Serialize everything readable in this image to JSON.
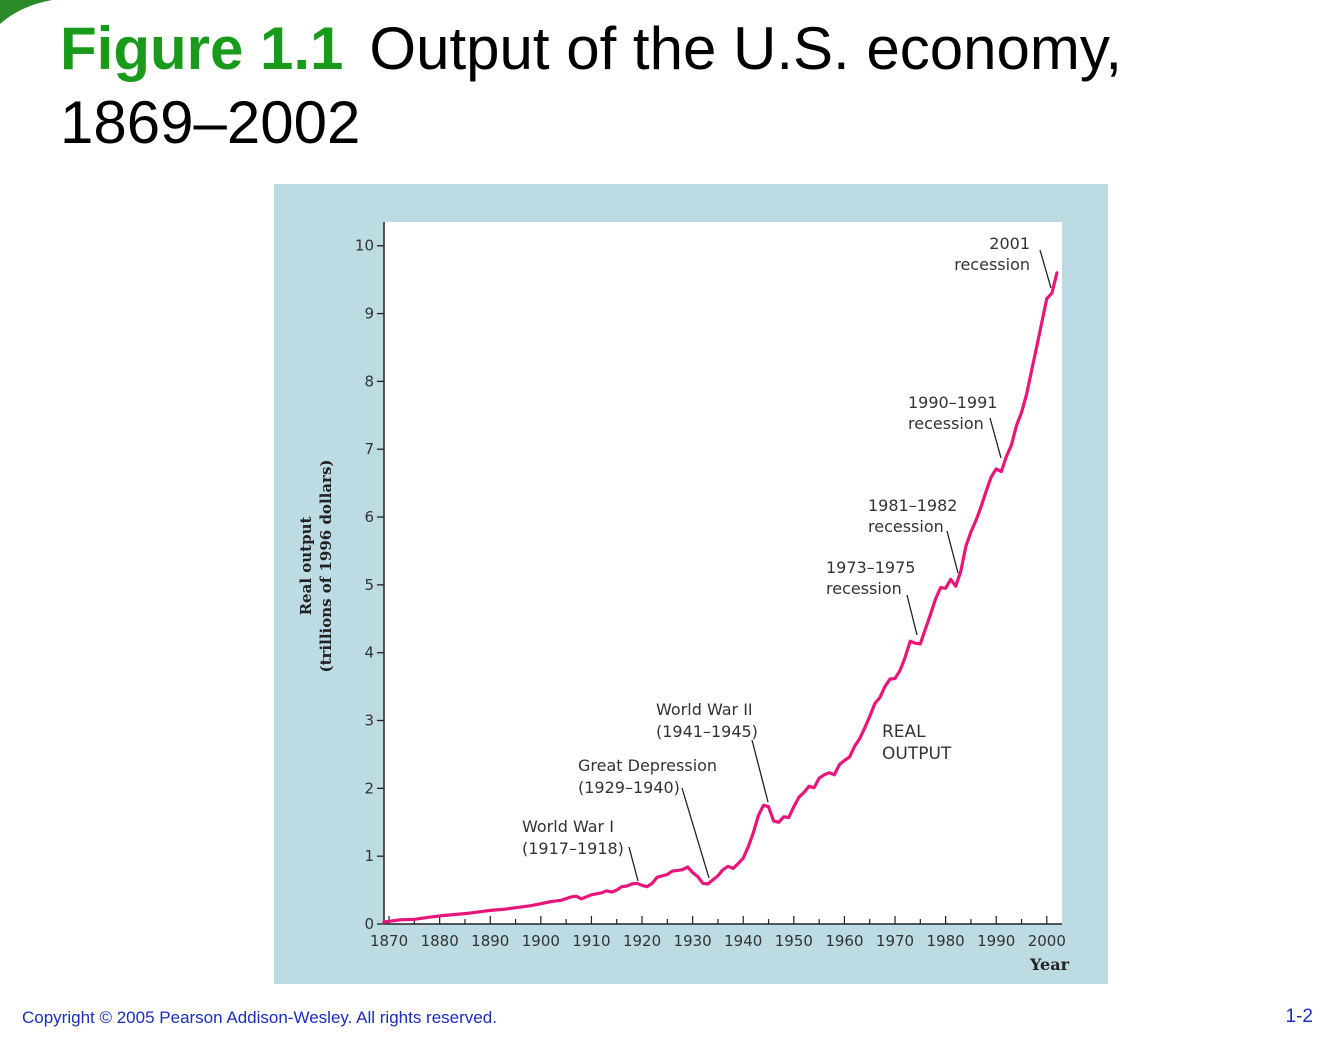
{
  "slide": {
    "title_prefix": "Figure 1.1",
    "title_text": "Output of the U.S. economy, 1869–2002",
    "copyright": "Copyright © 2005 Pearson Addison-Wesley. All rights reserved.",
    "slide_number": "1-2"
  },
  "colors": {
    "title_accent": "#1a9a1a",
    "panel_bg": "#bddbe2",
    "series": "#e8157a",
    "footer": "#1a2eb8"
  },
  "chart_data": {
    "type": "line",
    "ylabel_line1": "Real output",
    "ylabel_line2": "(trillions of 1996 dollars)",
    "xlabel": "Year",
    "xlim": [
      1869,
      2003
    ],
    "ylim": [
      0,
      10.35
    ],
    "x_ticks": [
      1870,
      1880,
      1890,
      1900,
      1910,
      1920,
      1930,
      1940,
      1950,
      1960,
      1970,
      1980,
      1990,
      2000
    ],
    "y_ticks": [
      0,
      1,
      2,
      3,
      4,
      5,
      6,
      7,
      8,
      9,
      10
    ],
    "series_label_line1": "REAL",
    "series_label_line2": "OUTPUT",
    "series": [
      {
        "name": "Real output",
        "x": [
          1869,
          1870,
          1872,
          1875,
          1878,
          1880,
          1883,
          1886,
          1889,
          1890,
          1893,
          1895,
          1898,
          1900,
          1902,
          1904,
          1906,
          1907,
          1908,
          1910,
          1912,
          1913,
          1914,
          1915,
          1916,
          1917,
          1918,
          1919,
          1920,
          1921,
          1922,
          1923,
          1925,
          1926,
          1927,
          1928,
          1929,
          1930,
          1931,
          1932,
          1933,
          1934,
          1935,
          1936,
          1937,
          1938,
          1939,
          1940,
          1941,
          1942,
          1943,
          1944,
          1945,
          1946,
          1947,
          1948,
          1949,
          1950,
          1951,
          1952,
          1953,
          1954,
          1955,
          1956,
          1957,
          1958,
          1959,
          1960,
          1961,
          1962,
          1963,
          1964,
          1965,
          1966,
          1967,
          1968,
          1969,
          1970,
          1971,
          1972,
          1973,
          1974,
          1975,
          1976,
          1977,
          1978,
          1979,
          1980,
          1981,
          1982,
          1983,
          1984,
          1985,
          1986,
          1987,
          1988,
          1989,
          1990,
          1991,
          1992,
          1993,
          1994,
          1995,
          1996,
          1997,
          1998,
          1999,
          2000,
          2001,
          2002
        ],
        "y": [
          0.03,
          0.04,
          0.06,
          0.07,
          0.1,
          0.12,
          0.14,
          0.16,
          0.19,
          0.2,
          0.22,
          0.24,
          0.27,
          0.3,
          0.33,
          0.35,
          0.4,
          0.41,
          0.37,
          0.43,
          0.46,
          0.49,
          0.47,
          0.5,
          0.55,
          0.56,
          0.59,
          0.6,
          0.57,
          0.55,
          0.6,
          0.69,
          0.73,
          0.78,
          0.79,
          0.8,
          0.84,
          0.76,
          0.7,
          0.6,
          0.59,
          0.65,
          0.71,
          0.8,
          0.85,
          0.82,
          0.89,
          0.97,
          1.14,
          1.35,
          1.6,
          1.75,
          1.73,
          1.52,
          1.5,
          1.58,
          1.57,
          1.73,
          1.87,
          1.94,
          2.03,
          2.01,
          2.15,
          2.2,
          2.23,
          2.2,
          2.35,
          2.41,
          2.46,
          2.62,
          2.73,
          2.89,
          3.06,
          3.25,
          3.34,
          3.5,
          3.61,
          3.62,
          3.74,
          3.93,
          4.17,
          4.14,
          4.13,
          4.35,
          4.56,
          4.79,
          4.96,
          4.95,
          5.08,
          4.98,
          5.2,
          5.57,
          5.78,
          5.95,
          6.15,
          6.38,
          6.59,
          6.71,
          6.67,
          6.89,
          7.06,
          7.35,
          7.54,
          7.81,
          8.16,
          8.51,
          8.87,
          9.22,
          9.3,
          9.6
        ]
      }
    ],
    "annotations": [
      {
        "line1": "World  War  I",
        "line2": "(1917–1918)"
      },
      {
        "line1": "Great  Depression",
        "line2": "(1929–1940)"
      },
      {
        "line1": "World  War  II",
        "line2": "(1941–1945)"
      },
      {
        "line1": "1973–1975",
        "line2": "recession"
      },
      {
        "line1": "1981–1982",
        "line2": "recession"
      },
      {
        "line1": "1990–1991",
        "line2": "recession"
      },
      {
        "line1": "2001",
        "line2": "recession"
      }
    ]
  }
}
